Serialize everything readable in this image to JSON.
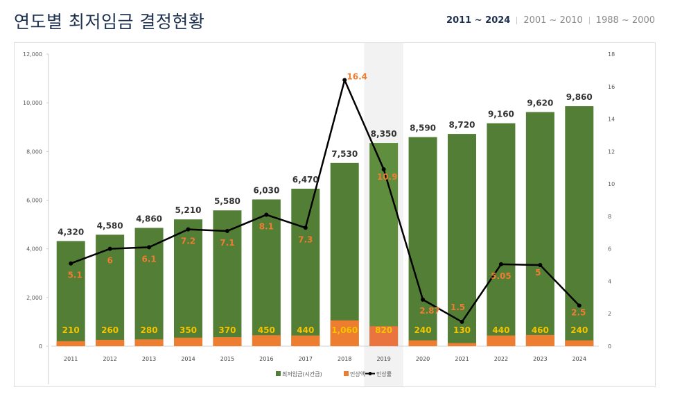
{
  "header": {
    "title": "연도별 최저임금 결정현황",
    "tabs": [
      {
        "label": "2011 ~ 2024",
        "active": true
      },
      {
        "label": "2001 ~ 2010",
        "active": false
      },
      {
        "label": "1988 ~ 2000",
        "active": false
      }
    ]
  },
  "chart_data": {
    "type": "bar",
    "categories": [
      "2011",
      "2012",
      "2013",
      "2014",
      "2015",
      "2016",
      "2017",
      "2018",
      "2019",
      "2020",
      "2021",
      "2022",
      "2023",
      "2024"
    ],
    "highlight_category": "2019",
    "series": [
      {
        "name": "최저임금(시간급)",
        "type": "bar",
        "axis": "left",
        "color": "#527f35",
        "values": [
          4320,
          4580,
          4860,
          5210,
          5580,
          6030,
          6470,
          7530,
          8350,
          8590,
          8720,
          9160,
          9620,
          9860
        ],
        "labels": [
          "4,320",
          "4,580",
          "4,860",
          "5,210",
          "5,580",
          "6,030",
          "6,470",
          "7,530",
          "8,350",
          "8,590",
          "8,720",
          "9,160",
          "9,620",
          "9,860"
        ]
      },
      {
        "name": "인상액",
        "type": "bar",
        "axis": "left",
        "color": "#ed7d31",
        "values": [
          210,
          260,
          280,
          350,
          370,
          450,
          440,
          1060,
          820,
          240,
          130,
          440,
          460,
          240
        ],
        "labels": [
          "210",
          "260",
          "280",
          "350",
          "370",
          "450",
          "440",
          "1,060",
          "820",
          "240",
          "130",
          "440",
          "460",
          "240"
        ]
      },
      {
        "name": "인상률",
        "type": "line",
        "axis": "right",
        "color": "#000000",
        "values": [
          5.1,
          6,
          6.1,
          7.2,
          7.1,
          8.1,
          7.3,
          16.4,
          10.9,
          2.87,
          1.5,
          5.05,
          5,
          2.5
        ],
        "labels": [
          "5.1",
          "6",
          "6.1",
          "7.2",
          "7.1",
          "8.1",
          "7.3",
          "16.4",
          "10.9",
          "2.87",
          "1.5",
          "5.05",
          "5",
          "2.5"
        ]
      }
    ],
    "y_left": {
      "min": 0,
      "max": 12000,
      "ticks": [
        "0",
        "2,000",
        "4,000",
        "6,000",
        "8,000",
        "10,000",
        "12,000"
      ]
    },
    "y_right": {
      "min": 0,
      "max": 18,
      "ticks": [
        "0",
        "2",
        "4",
        "6",
        "8",
        "10",
        "12",
        "14",
        "16",
        "18"
      ]
    },
    "grid": false,
    "legend_position": "bottom",
    "colors": {
      "total_label": "#333333",
      "increase_label": "#f5c400",
      "rate_label": "#ed7d31",
      "highlight_band": "#f2f2f2",
      "highlight_total": "#5f8e3f",
      "highlight_increase": "#e9743f"
    }
  }
}
